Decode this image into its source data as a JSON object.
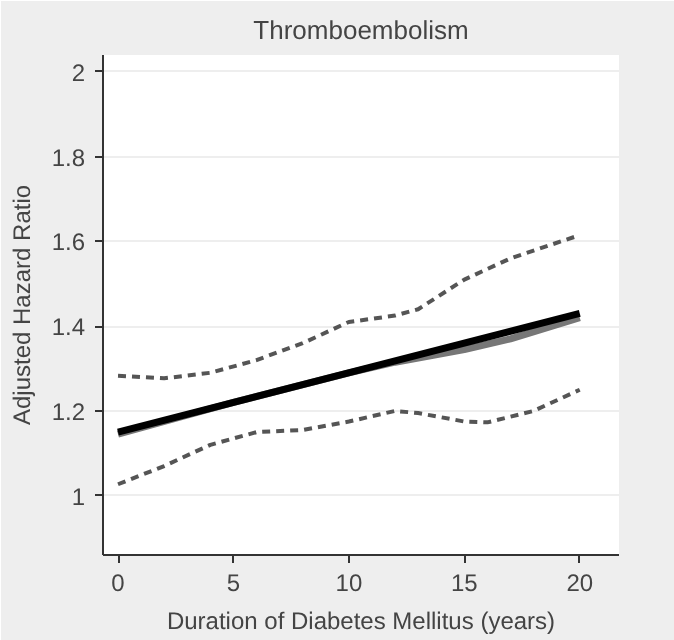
{
  "chart_data": {
    "type": "line",
    "title": "Thromboembolism",
    "xlabel": "Duration of Diabetes Mellitus (years)",
    "ylabel": "Adjusted Hazard Ratio",
    "xlim": [
      -0.65,
      21.7
    ],
    "ylim": [
      0.86,
      2.04
    ],
    "xticks": [
      0,
      5,
      10,
      15,
      20
    ],
    "yticks": [
      1,
      1.2,
      1.4,
      1.6,
      1.8,
      2
    ],
    "grid": "y",
    "series": [
      {
        "color": "#555555",
        "line_style": "dashed",
        "x": [
          0,
          2,
          4,
          6,
          8,
          10,
          12,
          13,
          15,
          17,
          20
        ],
        "values": [
          1.283,
          1.277,
          1.29,
          1.32,
          1.36,
          1.41,
          1.425,
          1.44,
          1.51,
          1.56,
          1.615
        ]
      },
      {
        "color": "#555555",
        "line_style": "dashed",
        "x": [
          0,
          2,
          4,
          6,
          8,
          10,
          12,
          13,
          15,
          16,
          18,
          20
        ],
        "values": [
          1.027,
          1.07,
          1.12,
          1.15,
          1.155,
          1.175,
          1.2,
          1.195,
          1.175,
          1.173,
          1.2,
          1.25
        ]
      },
      {
        "color": "#777777",
        "line_style": "solid",
        "x": [
          0,
          5,
          10,
          12,
          15,
          17,
          20
        ],
        "values": [
          1.145,
          1.22,
          1.29,
          1.315,
          1.345,
          1.37,
          1.42
        ]
      },
      {
        "color": "#000000",
        "line_style": "solid",
        "x": [
          0,
          20
        ],
        "values": [
          1.15,
          1.43
        ]
      }
    ]
  }
}
